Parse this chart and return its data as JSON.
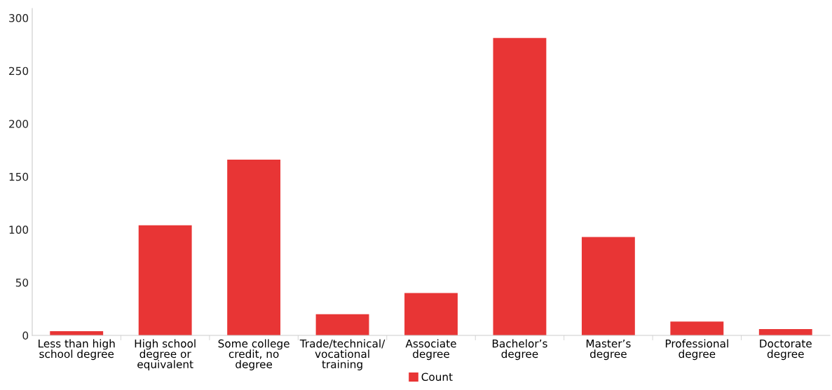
{
  "chart_data": {
    "type": "bar",
    "categories": [
      "Less than high\nschool degree",
      "High school\ndegree or\nequivalent",
      "Some college\ncredit, no\ndegree",
      "Trade/technical/\nvocational\ntraining",
      "Associate\ndegree",
      "Bachelor’s\ndegree",
      "Master’s\ndegree",
      "Professional\ndegree",
      "Doctorate\ndegree"
    ],
    "series": [
      {
        "name": "Count",
        "color": "#e83535",
        "values": [
          4,
          104,
          166,
          20,
          40,
          281,
          93,
          13,
          6
        ]
      }
    ],
    "ylim": [
      0,
      309
    ],
    "yticks": [
      0,
      50,
      100,
      150,
      200,
      250,
      300
    ],
    "grid": false,
    "legend": "bottom"
  }
}
